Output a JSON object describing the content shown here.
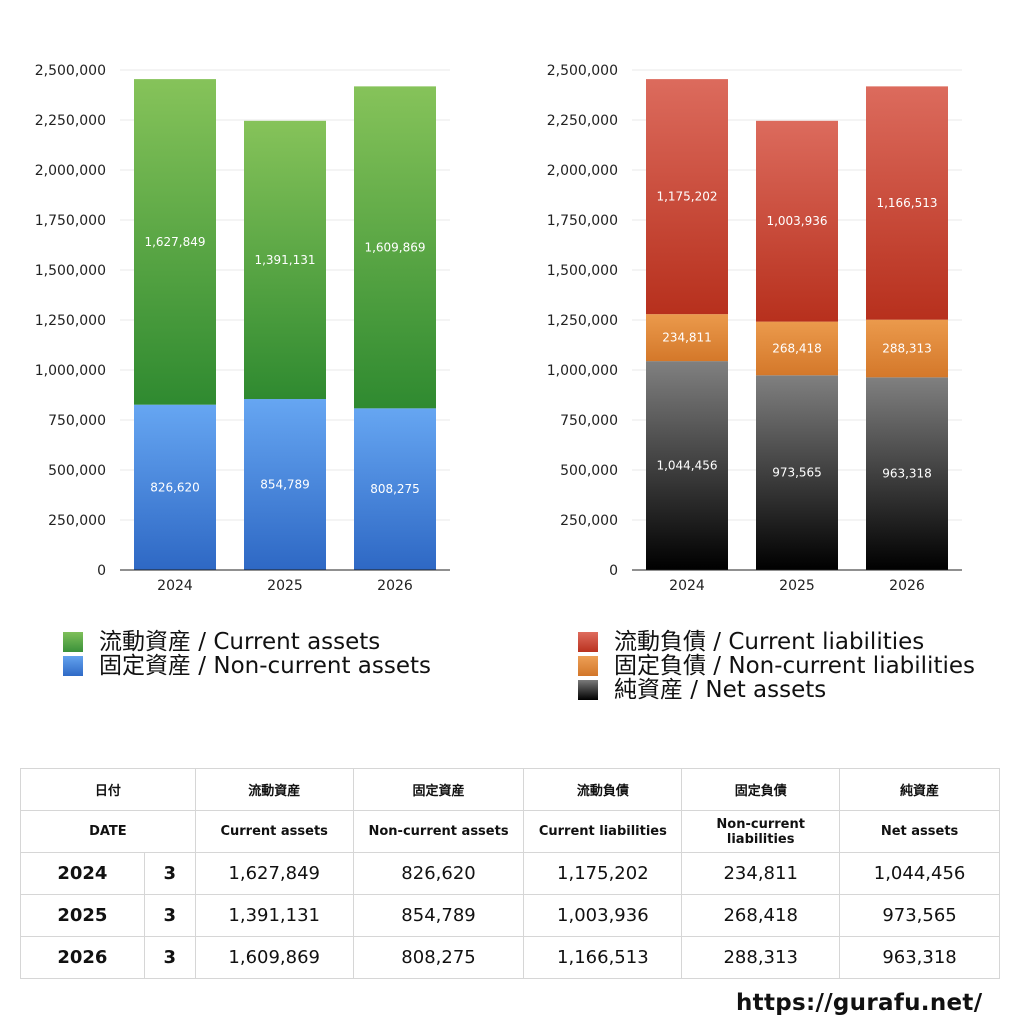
{
  "chart_data": [
    {
      "type": "bar",
      "stacked": true,
      "categories": [
        "2024",
        "2025",
        "2026"
      ],
      "series": [
        {
          "name": "固定資産 / Non-current assets",
          "values": [
            826620,
            854789,
            808275
          ],
          "labels": [
            "826,620",
            "854,789",
            "808,275"
          ],
          "color_top": "#66a6f2",
          "color_bottom": "#2e68c4"
        },
        {
          "name": "流動資産 / Current assets",
          "values": [
            1627849,
            1391131,
            1609869
          ],
          "labels": [
            "1,627,849",
            "1,391,131",
            "1,609,869"
          ],
          "color_top": "#86c35a",
          "color_bottom": "#2f8a30"
        }
      ],
      "ylim": [
        0,
        2500000
      ],
      "yticks": [
        0,
        250000,
        500000,
        750000,
        1000000,
        1250000,
        1500000,
        1750000,
        2000000,
        2250000,
        2500000
      ],
      "ytick_labels": [
        "0",
        "250,000",
        "500,000",
        "750,000",
        "1,000,000",
        "1,250,000",
        "1,500,000",
        "1,750,000",
        "2,000,000",
        "2,250,000",
        "2,500,000"
      ],
      "grid": true,
      "legend": [
        {
          "label": "流動資産 / Current assets",
          "color": "#4aa03e"
        },
        {
          "label": "固定資産 / Non-current assets",
          "color": "#3a7ad6"
        }
      ]
    },
    {
      "type": "bar",
      "stacked": true,
      "categories": [
        "2024",
        "2025",
        "2026"
      ],
      "series": [
        {
          "name": "純資産 / Net assets",
          "values": [
            1044456,
            973565,
            963318
          ],
          "labels": [
            "1,044,456",
            "973,565",
            "963,318"
          ],
          "color_top": "#808080",
          "color_bottom": "#000000"
        },
        {
          "name": "固定負債 / Non-current liabilities",
          "values": [
            234811,
            268418,
            288313
          ],
          "labels": [
            "234,811",
            "268,418",
            "288,313"
          ],
          "color_top": "#eb9a4c",
          "color_bottom": "#d4782a"
        },
        {
          "name": "流動負債 / Current liabilities",
          "values": [
            1175202,
            1003936,
            1166513
          ],
          "labels": [
            "1,175,202",
            "1,003,936",
            "1,166,513"
          ],
          "color_top": "#dc6b5d",
          "color_bottom": "#b7301d"
        }
      ],
      "ylim": [
        0,
        2500000
      ],
      "yticks": [
        0,
        250000,
        500000,
        750000,
        1000000,
        1250000,
        1500000,
        1750000,
        2000000,
        2250000,
        2500000
      ],
      "ytick_labels": [
        "0",
        "250,000",
        "500,000",
        "750,000",
        "1,000,000",
        "1,250,000",
        "1,500,000",
        "1,750,000",
        "2,000,000",
        "2,250,000",
        "2,500,000"
      ],
      "grid": true,
      "legend": [
        {
          "label": "流動負債 / Current liabilities",
          "color": "#d2473a"
        },
        {
          "label": "固定負債 / Non-current liabilities",
          "color": "#e58a3a"
        },
        {
          "label": "純資産 / Net assets",
          "color": "#3a3a3a"
        }
      ]
    }
  ],
  "table": {
    "header_ja": [
      "日付",
      "流動資産",
      "固定資産",
      "流動負債",
      "固定負債",
      "純資産"
    ],
    "header_en": [
      "DATE",
      "Current assets",
      "Non-current assets",
      "Current liabilities",
      "Non-current liabilities",
      "Net assets"
    ],
    "rows": [
      {
        "year": "2024",
        "month": "3",
        "ca": "1,627,849",
        "nca": "826,620",
        "cl": "1,175,202",
        "ncl": "234,811",
        "na": "1,044,456"
      },
      {
        "year": "2025",
        "month": "3",
        "ca": "1,391,131",
        "nca": "854,789",
        "cl": "1,003,936",
        "ncl": "268,418",
        "na": "973,565"
      },
      {
        "year": "2026",
        "month": "3",
        "ca": "1,609,869",
        "nca": "808,275",
        "cl": "1,166,513",
        "ncl": "288,313",
        "na": "963,318"
      }
    ]
  },
  "footer": {
    "url": "https://gurafu.net/"
  }
}
